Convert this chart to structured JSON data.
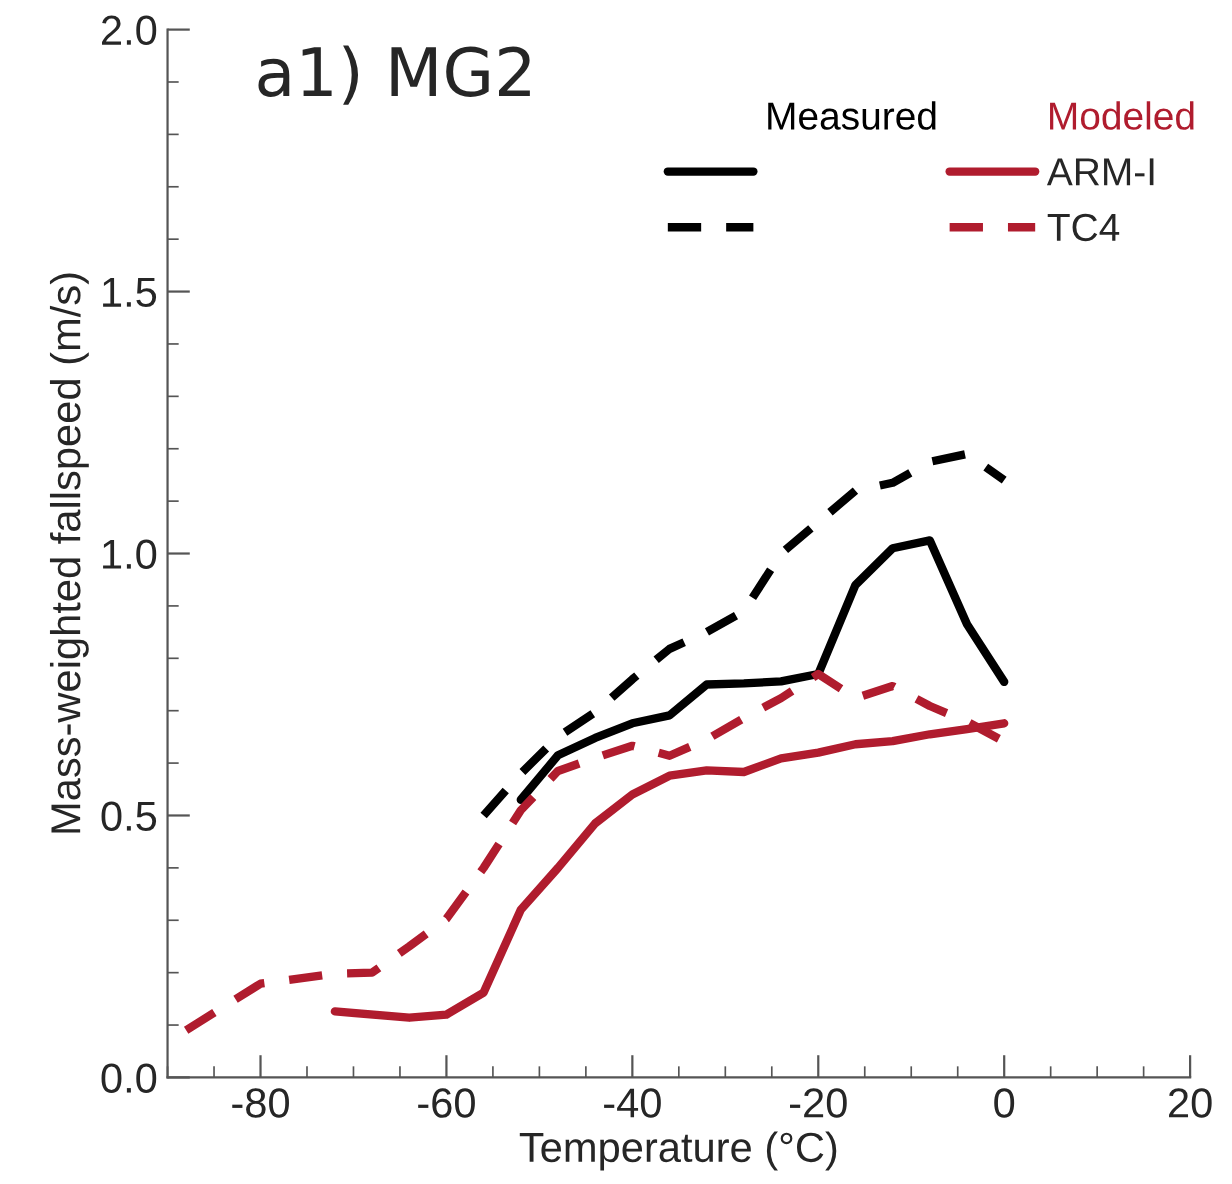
{
  "chart_data": {
    "type": "line",
    "title": "a1) MG2",
    "xlabel": "Temperature (°C)",
    "ylabel": "Mass-weighted fallspeed (m/s)",
    "annotations": [
      "Measured",
      "Modeled"
    ],
    "xlim": [
      -90,
      20
    ],
    "xticks": [
      -80,
      -60,
      -40,
      -20,
      0,
      20
    ],
    "ylim": [
      0,
      2
    ],
    "yticks": [
      {
        "value": 0,
        "label": "0.0"
      },
      0.5,
      {
        "value": 1,
        "label": "1.0"
      },
      1.5,
      {
        "value": 2,
        "label": "2.0"
      }
    ],
    "grid": false,
    "legend": "top right",
    "series": [
      {
        "color": "#000000",
        "line_style": "solid",
        "x": [
          -52,
          -48,
          -44,
          -40,
          -36,
          -32,
          -28,
          -24,
          -20,
          -16,
          -12,
          -8,
          -4,
          0
        ],
        "values": [
          0.53,
          0.615,
          0.648,
          0.676,
          0.691,
          0.75,
          0.752,
          0.756,
          0.77,
          0.94,
          1.01,
          1.025,
          0.865,
          0.755
        ]
      },
      {
        "color": "#000000",
        "line_style": "dashed",
        "x": [
          -56,
          -52,
          -48,
          -44,
          -40,
          -36,
          -32,
          -28,
          -24,
          -20,
          -16,
          -12,
          -8,
          -4,
          0
        ],
        "values": [
          0.5,
          0.58,
          0.65,
          0.697,
          0.76,
          0.818,
          0.85,
          0.89,
          1.0,
          1.06,
          1.12,
          1.135,
          1.175,
          1.19,
          1.14
        ]
      },
      {
        "name": "ARM-I",
        "color": "#b01c2e",
        "line_style": "solid",
        "x": [
          -72,
          -64,
          -60,
          -56,
          -52,
          -48,
          -44,
          -40,
          -36,
          -32,
          -28,
          -24,
          -20,
          -16,
          -12,
          -8,
          -4,
          0
        ],
        "values": [
          0.126,
          0.114,
          0.12,
          0.162,
          0.32,
          0.4,
          0.485,
          0.54,
          0.576,
          0.586,
          0.583,
          0.609,
          0.62,
          0.636,
          0.642,
          0.655,
          0.665,
          0.676
        ]
      },
      {
        "name": "TC4",
        "color": "#b01c2e",
        "line_style": "dashed",
        "x": [
          -88,
          -80,
          -72,
          -68,
          -64,
          -60,
          -56,
          -52,
          -48,
          -44,
          -40,
          -36,
          -32,
          -28,
          -24,
          -20,
          -16,
          -12,
          -8,
          -4,
          0
        ],
        "values": [
          0.09,
          0.179,
          0.198,
          0.2,
          0.25,
          0.303,
          0.4,
          0.51,
          0.585,
          0.61,
          0.633,
          0.614,
          0.645,
          0.686,
          0.724,
          0.77,
          0.724,
          0.747,
          0.709,
          0.679,
          0.641
        ]
      }
    ]
  }
}
